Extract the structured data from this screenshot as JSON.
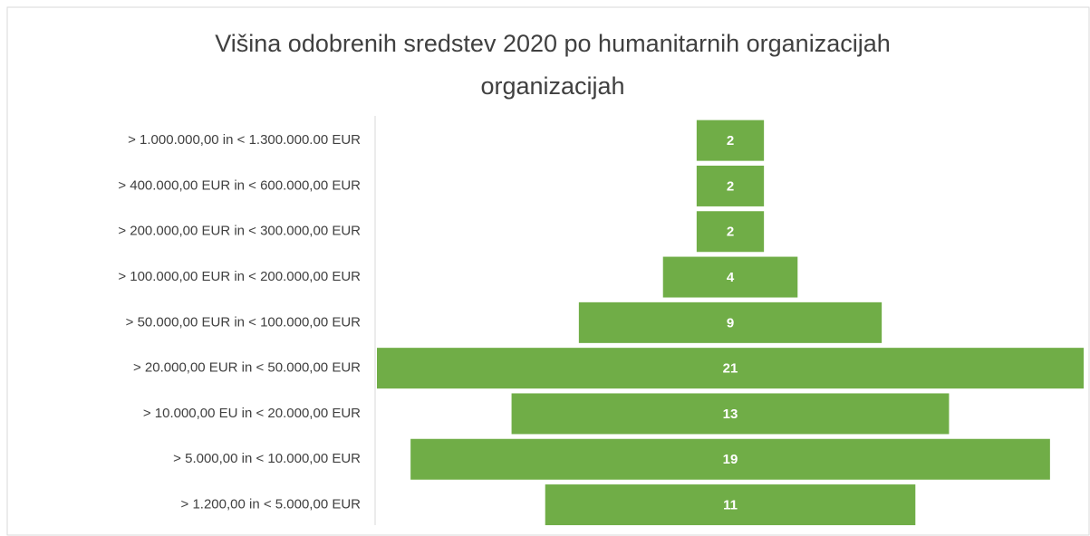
{
  "chart_data": {
    "type": "funnel",
    "title": [
      "Višina odobrenih sredstev 2020 po humanitarnih organizacijah",
      "organizacijah"
    ],
    "categories": [
      "> 1.000.000,00 in < 1.300.000.00 EUR",
      "> 400.000,00 EUR in < 600.000,00 EUR",
      "> 200.000,00 EUR in < 300.000,00 EUR",
      "> 100.000,00 EUR in < 200.000,00 EUR",
      "> 50.000,00 EUR in < 100.000,00 EUR",
      "> 20.000,00 EUR in < 50.000,00 EUR",
      "> 10.000,00 EU in < 20.000,00 EUR",
      "> 5.000,00 in < 10.000,00 EUR",
      "> 1.200,00 in < 5.000,00 EUR"
    ],
    "values": [
      2,
      2,
      2,
      4,
      9,
      21,
      13,
      19,
      11
    ],
    "color": "#70ad47"
  }
}
